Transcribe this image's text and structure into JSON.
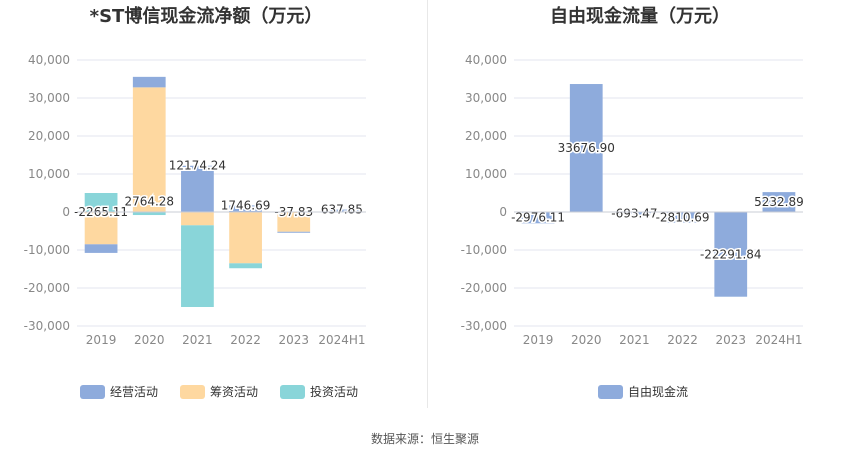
{
  "titles": {
    "left": "*ST博信现金流净额（万元）",
    "right": "自由现金流量（万元）"
  },
  "source": "数据来源：恒生聚源",
  "colors": {
    "operating": "#8eabdc",
    "financing": "#fed8a0",
    "investing": "#89d5d9",
    "free_cf": "#8eabdc",
    "grid": "#e3e6ef",
    "axis_text": "#888888",
    "label_text": "#333333"
  },
  "chart_data": [
    {
      "type": "bar",
      "stacked": true,
      "title": "*ST博信现金流净额（万元）",
      "categories": [
        "2019",
        "2020",
        "2021",
        "2022",
        "2023",
        "2024H1"
      ],
      "ylim": [
        -30000,
        40000
      ],
      "yticks": [
        40000,
        30000,
        20000,
        10000,
        0,
        -10000,
        -20000,
        -30000
      ],
      "ytick_labels": [
        "40,000",
        "30,000",
        "20,000",
        "10,000",
        "0",
        "-10,000",
        "-20,000",
        "-30,000"
      ],
      "grid": true,
      "legend_position": "bottom-left",
      "series": [
        {
          "name": "经营活动",
          "key": "operating",
          "values": [
            -2265.11,
            2764.28,
            12174.24,
            1746.69,
            -37.83,
            637.85
          ]
        },
        {
          "name": "筹资活动",
          "key": "financing",
          "values": [
            -8500,
            32800,
            -3500,
            -13500,
            -5200,
            0
          ]
        },
        {
          "name": "投资活动",
          "key": "investing",
          "values": [
            5000,
            -800,
            -21500,
            -1300,
            0,
            0
          ]
        }
      ],
      "data_labels": [
        "-2265.11",
        "2764.28",
        "12174.24",
        "1746.69",
        "-37.83",
        "637.85"
      ]
    },
    {
      "type": "bar",
      "title": "自由现金流量（万元）",
      "categories": [
        "2019",
        "2020",
        "2021",
        "2022",
        "2023",
        "2024H1"
      ],
      "ylim": [
        -30000,
        40000
      ],
      "yticks": [
        40000,
        30000,
        20000,
        10000,
        0,
        -10000,
        -20000,
        -30000
      ],
      "ytick_labels": [
        "40,000",
        "30,000",
        "20,000",
        "10,000",
        "0",
        "-10,000",
        "-20,000",
        "-30,000"
      ],
      "grid": true,
      "legend_position": "bottom-center",
      "series": [
        {
          "name": "自由现金流",
          "key": "free_cf",
          "values": [
            -2976.11,
            33676.9,
            -693.47,
            -2810.69,
            -22291.84,
            5232.89
          ]
        }
      ],
      "data_labels": [
        "-2976.11",
        "33676.90",
        "-693.47",
        "-2810.69",
        "-22291.84",
        "5232.89"
      ]
    }
  ]
}
